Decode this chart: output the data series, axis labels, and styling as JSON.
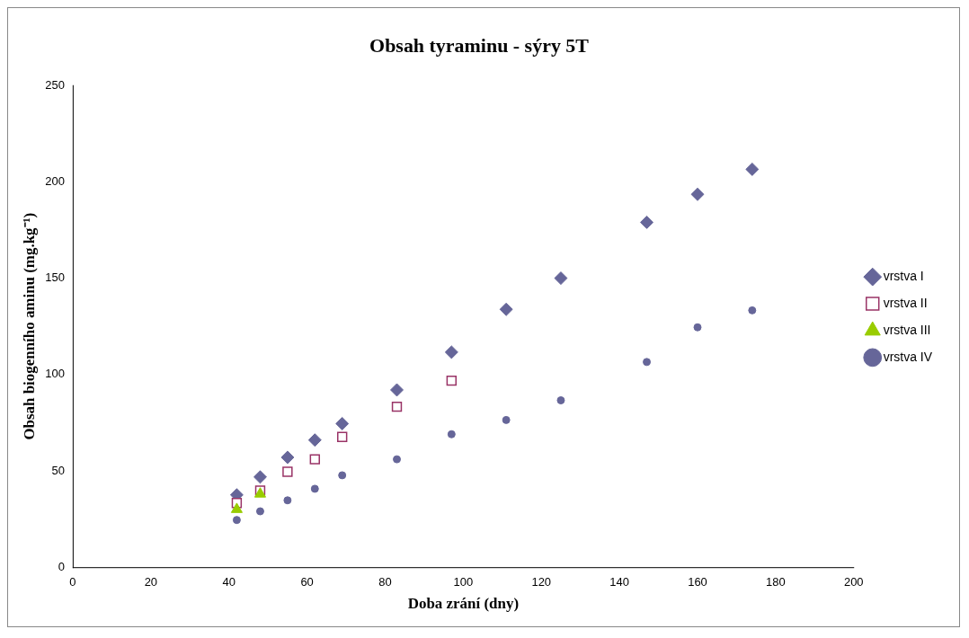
{
  "chart_data": {
    "type": "scatter",
    "title": "Obsah tyraminu - sýry 5T",
    "xlabel": "Doba zrání (dny)",
    "ylabel": "Obsah biogenního aminu (mg.kg⁻¹)",
    "xlim": [
      0,
      200
    ],
    "xticks": [
      0,
      20,
      40,
      60,
      80,
      100,
      120,
      140,
      160,
      180,
      200
    ],
    "ylim": [
      0,
      250
    ],
    "yticks": [
      0,
      50,
      100,
      150,
      200,
      250
    ],
    "grid": false,
    "legend": "right",
    "series": [
      {
        "name": "vrstva I",
        "color": "#666699",
        "marker": "diamond",
        "x": [
          42,
          48,
          55,
          62,
          69,
          83,
          97,
          111,
          125,
          147,
          160,
          174
        ],
        "values": [
          37.5,
          46.8,
          57,
          66,
          74.5,
          92,
          111.6,
          133.8,
          150,
          179,
          193.5,
          206.5
        ]
      },
      {
        "name": "vrstva II",
        "color": "#993366",
        "marker": "square",
        "x": [
          42,
          48,
          55,
          62,
          69,
          83,
          97
        ],
        "values": [
          33.3,
          39.8,
          49.5,
          56,
          67.6,
          83.3,
          96.8
        ]
      },
      {
        "name": "vrstva III",
        "color": "#99cc00",
        "marker": "triangle",
        "x": [
          42,
          48
        ],
        "values": [
          30,
          38
        ]
      },
      {
        "name": "vrstva IV",
        "color": "#666699",
        "marker": "circle",
        "x": [
          42,
          48,
          55,
          62,
          69,
          83,
          97,
          111,
          125,
          147,
          160,
          174
        ],
        "values": [
          24.5,
          29,
          34.7,
          40.7,
          47.7,
          56,
          69,
          76.4,
          86.6,
          106.5,
          124.5,
          133.3
        ]
      }
    ]
  }
}
